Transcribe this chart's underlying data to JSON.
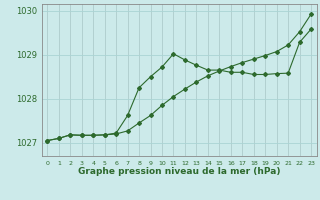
{
  "x": [
    0,
    1,
    2,
    3,
    4,
    5,
    6,
    7,
    8,
    9,
    10,
    11,
    12,
    13,
    14,
    15,
    16,
    17,
    18,
    19,
    20,
    21,
    22,
    23
  ],
  "line1": [
    1027.05,
    1027.1,
    1027.18,
    1027.17,
    1027.17,
    1027.18,
    1027.2,
    1027.27,
    1027.45,
    1027.62,
    1027.85,
    1028.05,
    1028.22,
    1028.38,
    1028.52,
    1028.63,
    1028.73,
    1028.82,
    1028.9,
    1028.98,
    1029.07,
    1029.22,
    1029.52,
    1029.92
  ],
  "line2": [
    1027.05,
    1027.1,
    1027.18,
    1027.17,
    1027.17,
    1027.18,
    1027.22,
    1027.62,
    1028.25,
    1028.5,
    1028.72,
    1029.02,
    1028.88,
    1028.76,
    1028.65,
    1028.65,
    1028.6,
    1028.6,
    1028.55,
    1028.55,
    1028.57,
    1028.58,
    1029.28,
    1029.58
  ],
  "line_color": "#2d6a2d",
  "bg_color": "#cceaea",
  "grid_color": "#aad4d4",
  "xlabel": "Graphe pression niveau de la mer (hPa)",
  "ylim": [
    1026.7,
    1030.15
  ],
  "xlim": [
    -0.5,
    23.5
  ],
  "yticks": [
    1027,
    1028,
    1029,
    1030
  ],
  "xticks": [
    0,
    1,
    2,
    3,
    4,
    5,
    6,
    7,
    8,
    9,
    10,
    11,
    12,
    13,
    14,
    15,
    16,
    17,
    18,
    19,
    20,
    21,
    22,
    23
  ]
}
